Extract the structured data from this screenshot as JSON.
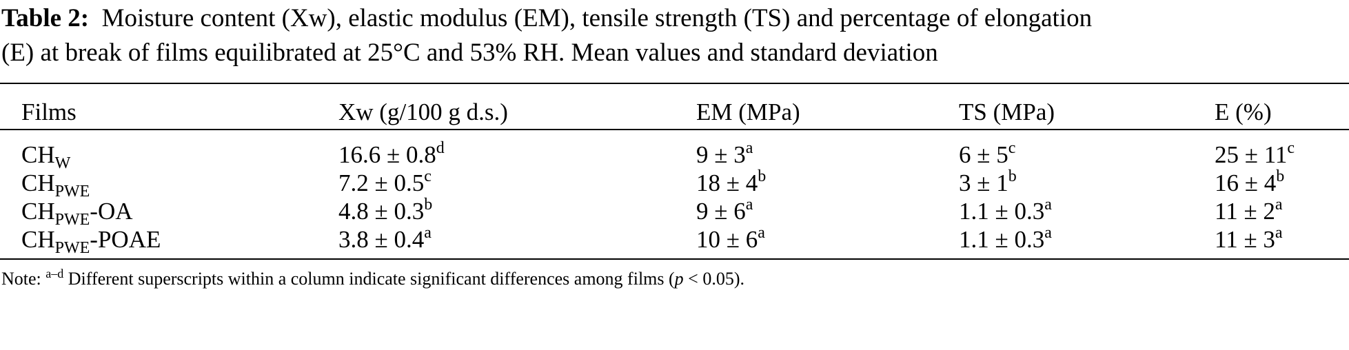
{
  "caption": {
    "label": "Table 2:",
    "line1": "Moisture content (Xw), elastic modulus (EM), tensile strength (TS) and percentage of elongation",
    "line2": "(E) at break of films equilibrated at 25°C and 53% RH. Mean values and standard deviation"
  },
  "headers": [
    "Films",
    "Xw (g/100 g d.s.)",
    "EM (MPa)",
    "TS (MPa)",
    "E (%)"
  ],
  "rows": [
    {
      "film": {
        "base": "CH",
        "sub": "W",
        "suffix": ""
      },
      "cells": [
        {
          "v": "16.6 ± 0.8",
          "s": "d"
        },
        {
          "v": "9 ± 3",
          "s": "a"
        },
        {
          "v": "6 ± 5",
          "s": "c"
        },
        {
          "v": "25 ± 11",
          "s": "c"
        }
      ]
    },
    {
      "film": {
        "base": "CH",
        "sub": "PWE",
        "suffix": ""
      },
      "cells": [
        {
          "v": "7.2 ± 0.5",
          "s": "c"
        },
        {
          "v": "18 ± 4",
          "s": "b"
        },
        {
          "v": "3 ± 1",
          "s": "b"
        },
        {
          "v": "16 ± 4",
          "s": "b"
        }
      ]
    },
    {
      "film": {
        "base": "CH",
        "sub": "PWE",
        "suffix": "-OA"
      },
      "cells": [
        {
          "v": "4.8 ± 0.3",
          "s": "b"
        },
        {
          "v": "9 ± 6",
          "s": "a"
        },
        {
          "v": "1.1 ± 0.3",
          "s": "a"
        },
        {
          "v": "11 ± 2",
          "s": "a"
        }
      ]
    },
    {
      "film": {
        "base": "CH",
        "sub": "PWE",
        "suffix": "-POAE"
      },
      "cells": [
        {
          "v": "3.8 ± 0.4",
          "s": "a"
        },
        {
          "v": "10 ± 6",
          "s": "a"
        },
        {
          "v": "1.1 ± 0.3",
          "s": "a"
        },
        {
          "v": "11 ± 3",
          "s": "a"
        }
      ]
    }
  ],
  "note": {
    "prefix": "Note: ",
    "sup": "a–d",
    "text": " Different superscripts within a column indicate significant differences among films (",
    "italic": "p",
    "end": " < 0.05)."
  }
}
